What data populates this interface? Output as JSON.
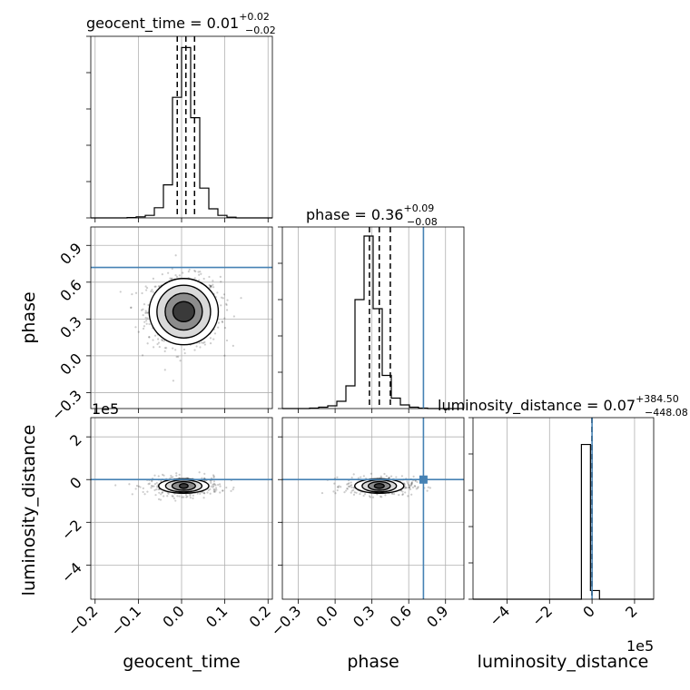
{
  "chart_data": {
    "type": "corner",
    "params": [
      "geocent_time",
      "phase",
      "luminosity_distance"
    ],
    "axis_labels": {
      "geocent_time": "geocent_time",
      "phase": "phase",
      "luminosity_distance": "luminosity_distance"
    },
    "titles": [
      {
        "param": "geocent_time",
        "name": "geocent_time",
        "median": "0.01",
        "plus": "+0.02",
        "minus": "−0.02"
      },
      {
        "param": "phase",
        "name": "phase",
        "median": "0.36",
        "plus": "+0.09",
        "minus": "−0.08"
      },
      {
        "param": "luminosity_distance",
        "name": "luminosity_distance",
        "median": "0.07",
        "plus": "+384.50",
        "minus": "−448.08"
      }
    ],
    "axis_ranges": {
      "geocent_time": [
        -0.21,
        0.21
      ],
      "phase": [
        -0.43,
        1.05
      ],
      "luminosity_distance": [
        -560000,
        290000
      ]
    },
    "ticks": {
      "geocent_time": {
        "values": [
          -0.2,
          -0.1,
          0.0,
          0.1,
          0.2
        ],
        "labels": [
          "−0.2",
          "−0.1",
          "0.0",
          "0.1",
          "0.2"
        ]
      },
      "phase": {
        "values": [
          -0.3,
          0.0,
          0.3,
          0.6,
          0.9
        ],
        "labels": [
          "−0.3",
          "0.0",
          "0.3",
          "0.6",
          "0.9"
        ]
      },
      "luminosity_distance": {
        "values": [
          -400000,
          -200000,
          0,
          200000
        ],
        "labels": [
          "−4",
          "−2",
          "0",
          "2"
        ],
        "offset_label": "1e5"
      }
    },
    "histograms": {
      "geocent_time": {
        "bin_edges": [
          -0.21,
          -0.189,
          -0.168,
          -0.147,
          -0.126,
          -0.105,
          -0.084,
          -0.063,
          -0.042,
          -0.021,
          0.0,
          0.021,
          0.042,
          0.063,
          0.084,
          0.105,
          0.126,
          0.147,
          0.168,
          0.189,
          0.21
        ],
        "counts": [
          0,
          0,
          0,
          0,
          1,
          3,
          7,
          28,
          91,
          332,
          469,
          276,
          82,
          25,
          7,
          2,
          0,
          0,
          0,
          0
        ],
        "ylim": [
          0,
          500
        ],
        "quantiles": [
          -0.01,
          0.01,
          0.03
        ]
      },
      "phase": {
        "bin_edges": [
          -0.43,
          -0.356,
          -0.282,
          -0.208,
          -0.134,
          -0.06,
          0.014,
          0.088,
          0.162,
          0.236,
          0.31,
          0.384,
          0.458,
          0.532,
          0.606,
          0.68,
          0.754,
          0.828,
          0.902,
          0.976,
          1.05
        ],
        "counts": [
          0,
          0,
          0,
          1,
          3,
          6,
          16,
          50,
          240,
          380,
          220,
          73,
          23,
          8,
          3,
          1,
          0,
          0,
          0,
          0
        ],
        "ylim": [
          0,
          400
        ],
        "quantiles": [
          0.28,
          0.36,
          0.45
        ],
        "truth": 0.72
      },
      "luminosity_distance": {
        "bin_edges": [
          -560000,
          -517500,
          -475000,
          -432500,
          -390000,
          -347500,
          -305000,
          -262500,
          -220000,
          -177500,
          -135000,
          -92500,
          -50000,
          -7500,
          35000,
          77500,
          120000,
          162500,
          205000,
          247500,
          290000
        ],
        "counts": [
          0,
          0,
          0,
          0,
          0,
          0,
          0,
          0,
          0,
          0,
          0,
          0,
          980,
          55,
          0,
          0,
          0,
          0,
          0,
          0
        ],
        "ylim": [
          0,
          1150
        ],
        "quantiles": [
          -448,
          0.07,
          385
        ],
        "truth": 0
      }
    },
    "scatter_panels": [
      {
        "x": "geocent_time",
        "y": "phase",
        "n_points": 900,
        "center": [
          0.005,
          0.36
        ],
        "spread": [
          0.042,
          0.14
        ],
        "contour_levels": [
          {
            "level": "0.5",
            "rx": 0.025,
            "ry": 0.082
          },
          {
            "level": "1.0",
            "rx": 0.043,
            "ry": 0.15
          },
          {
            "level": "1.5",
            "rx": 0.062,
            "ry": 0.215
          },
          {
            "level": "2.0",
            "rx": 0.08,
            "ry": 0.27
          }
        ],
        "truth_y": 0.72
      },
      {
        "x": "geocent_time",
        "y": "luminosity_distance",
        "n_points": 420,
        "center": [
          0.005,
          -30000
        ],
        "spread": [
          0.042,
          22000
        ],
        "contour_levels": [
          {
            "level": "0.5",
            "rx": 0.01,
            "ry": 11000
          },
          {
            "level": "1.0",
            "rx": 0.027,
            "ry": 20000
          },
          {
            "level": "1.5",
            "rx": 0.042,
            "ry": 28000
          },
          {
            "level": "2.0",
            "rx": 0.058,
            "ry": 34000
          }
        ],
        "truth_y": 0
      },
      {
        "x": "phase",
        "y": "luminosity_distance",
        "n_points": 420,
        "center": [
          0.36,
          -30000
        ],
        "spread": [
          0.14,
          22000
        ],
        "contour_levels": [
          {
            "level": "0.5",
            "rx": 0.04,
            "ry": 11000
          },
          {
            "level": "1.0",
            "rx": 0.09,
            "ry": 20000
          },
          {
            "level": "1.5",
            "rx": 0.14,
            "ry": 28000
          },
          {
            "level": "2.0",
            "rx": 0.2,
            "ry": 34000
          }
        ],
        "truth_x": 0.72,
        "truth_y": 0
      }
    ],
    "truth_color": "#4682b4",
    "grid": true
  }
}
